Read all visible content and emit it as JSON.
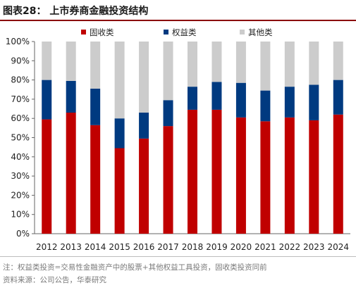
{
  "header": {
    "title": "图表28：  上市券商金融投资结构"
  },
  "chart_data": {
    "type": "bar",
    "stacked": true,
    "categories": [
      "2012",
      "2013",
      "2014",
      "2015",
      "2016",
      "2017",
      "2018",
      "2019",
      "2020",
      "2021",
      "2022",
      "2023",
      "2024"
    ],
    "series": [
      {
        "name": "固收类",
        "color": "#c00000",
        "values": [
          59.5,
          63,
          56.5,
          44.5,
          49.5,
          56,
          64.5,
          64.5,
          60.5,
          58.5,
          60.5,
          59,
          62
        ]
      },
      {
        "name": "权益类",
        "color": "#003a80",
        "values": [
          20.5,
          16.5,
          19,
          15.5,
          13.5,
          13.5,
          12,
          14.5,
          18,
          16,
          16,
          18.5,
          18
        ]
      },
      {
        "name": "其他类",
        "color": "#cccccc",
        "values": [
          20,
          20.5,
          24.5,
          40,
          37,
          30.5,
          23.5,
          21,
          21.5,
          25.5,
          23.5,
          22.5,
          20
        ]
      }
    ],
    "yticks": [
      "0%",
      "10%",
      "20%",
      "30%",
      "40%",
      "50%",
      "60%",
      "70%",
      "80%",
      "90%",
      "100%"
    ],
    "ylim": [
      0,
      100
    ],
    "legend_position": "top"
  },
  "footer": {
    "note": "注：权益类投资=交易性金融资产中的股票+其他权益工具投资，固收类投资同前",
    "source": "资料来源：公司公告，华泰研究"
  }
}
